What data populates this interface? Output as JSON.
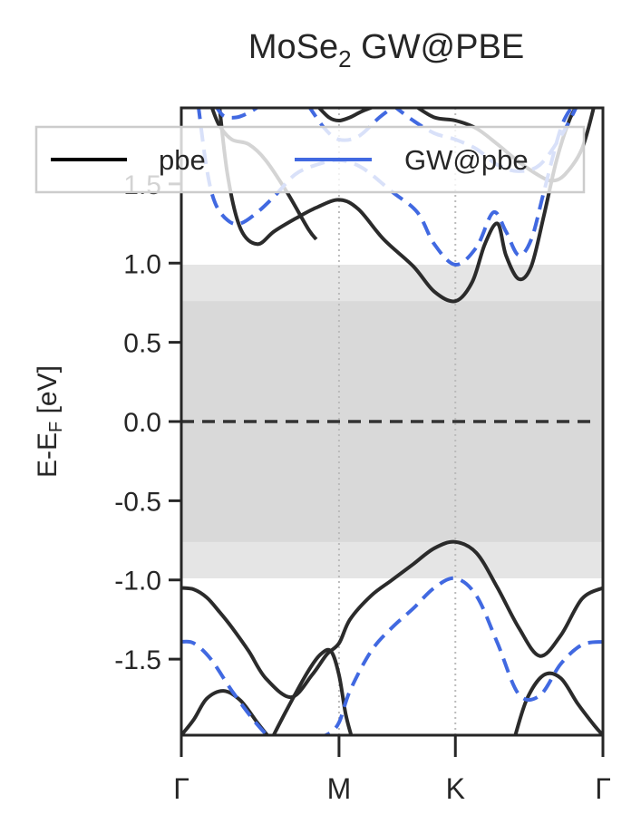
{
  "chart_data": {
    "type": "line",
    "title_main": "MoSe",
    "title_sub": "2",
    "title_rest": " GW@PBE",
    "ylabel_main": "E-E",
    "ylabel_sub": "F",
    "ylabel_rest": " [eV]",
    "ylim": [
      -1.98,
      1.98
    ],
    "yticks": [
      {
        "value": -1.5,
        "label": "-1.5"
      },
      {
        "value": -1.0,
        "label": "-1.0"
      },
      {
        "value": -0.5,
        "label": "-0.5"
      },
      {
        "value": 0.0,
        "label": "0.0"
      },
      {
        "value": 0.5,
        "label": "0.5"
      },
      {
        "value": 1.0,
        "label": "1.0"
      },
      {
        "value": 1.5,
        "label": "1.5"
      }
    ],
    "kpath_length": 1.0,
    "kticks": [
      {
        "k": 0.0,
        "label": "Γ"
      },
      {
        "k": 0.374,
        "label": "M"
      },
      {
        "k": 0.65,
        "label": "K"
      },
      {
        "k": 1.0,
        "label": "Γ"
      }
    ],
    "fermi_level": 0.0,
    "gaps": [
      {
        "series": "pbe",
        "vbm": -0.76,
        "cbm": 0.76,
        "color": "#d9d9d9"
      },
      {
        "series": "GW@pbe",
        "vbm": -0.99,
        "cbm": 0.99,
        "color": "#e5e5e5"
      }
    ],
    "legend": {
      "placement": "top",
      "entries": [
        {
          "label": "pbe",
          "color": "#000000"
        },
        {
          "label": "GW@pbe",
          "color": "#4169e1"
        }
      ]
    },
    "series": [
      {
        "name": "pbe",
        "color": "#2b2b2b",
        "style": "solid",
        "bands": [
          {
            "k": [
              0,
              0.03,
              0.06,
              0.09,
              0.12,
              0.16,
              0.2,
              0.26,
              0.31,
              0.345,
              0.374,
              0.4,
              0.45,
              0.5,
              0.55,
              0.6,
              0.65,
              0.7,
              0.75,
              0.8,
              0.85,
              0.9,
              0.95,
              1.0
            ],
            "e": [
              -1.05,
              -1.06,
              -1.11,
              -1.2,
              -1.3,
              -1.45,
              -1.62,
              -1.74,
              -1.6,
              -1.47,
              -1.4,
              -1.25,
              -1.1,
              -1.0,
              -0.9,
              -0.8,
              -0.76,
              -0.83,
              -1.05,
              -1.3,
              -1.48,
              -1.35,
              -1.12,
              -1.05
            ]
          },
          {
            "k": [
              0,
              0.03,
              0.06,
              0.1,
              0.14,
              0.18,
              0.21
            ],
            "e": [
              -1.98,
              -1.88,
              -1.75,
              -1.7,
              -1.76,
              -1.9,
              -2.0
            ]
          },
          {
            "k": [
              0.215,
              0.25,
              0.3,
              0.33,
              0.355,
              0.374,
              0.39,
              0.405
            ],
            "e": [
              -2.0,
              -1.82,
              -1.58,
              -1.47,
              -1.45,
              -1.6,
              -1.85,
              -2.0
            ]
          },
          {
            "k": [
              0.79,
              0.82,
              0.86,
              0.9,
              0.94,
              0.98,
              1.0
            ],
            "e": [
              -2.0,
              -1.75,
              -1.6,
              -1.62,
              -1.78,
              -1.92,
              -1.98
            ]
          },
          {
            "k": [
              0.09,
              0.11,
              0.14,
              0.18,
              0.22,
              0.27,
              0.32,
              0.374,
              0.42,
              0.48,
              0.55,
              0.6,
              0.65,
              0.69,
              0.72,
              0.75,
              0.77,
              0.8,
              0.83,
              0.86,
              0.89,
              0.92,
              0.94
            ],
            "e": [
              2.0,
              1.55,
              1.22,
              1.12,
              1.2,
              1.28,
              1.35,
              1.4,
              1.34,
              1.15,
              0.98,
              0.82,
              0.76,
              0.88,
              1.12,
              1.25,
              1.05,
              0.9,
              0.98,
              1.3,
              1.65,
              1.9,
              2.0
            ]
          },
          {
            "k": [
              0.07,
              0.09,
              0.12,
              0.16,
              0.2,
              0.25,
              0.3,
              0.32
            ],
            "e": [
              2.0,
              1.87,
              1.78,
              1.75,
              1.65,
              1.45,
              1.22,
              1.15
            ]
          },
          {
            "k": [
              0.55,
              0.6,
              0.65,
              0.7,
              0.75,
              0.8,
              0.85,
              0.88,
              0.91,
              0.95,
              0.98
            ],
            "e": [
              2.0,
              1.92,
              1.9,
              1.85,
              1.75,
              1.64,
              1.55,
              1.52,
              1.56,
              1.72,
              2.0
            ]
          },
          {
            "k": [
              0.32,
              0.35,
              0.374,
              0.4,
              0.43,
              0.47
            ],
            "e": [
              2.0,
              1.92,
              1.9,
              1.92,
              1.96,
              2.0
            ]
          }
        ]
      },
      {
        "name": "GW@pbe",
        "color": "#4169e1",
        "style": "dashed",
        "bands": [
          {
            "k": [
              0,
              0.03,
              0.07,
              0.12,
              0.17,
              0.21
            ],
            "e": [
              -1.39,
              -1.4,
              -1.5,
              -1.7,
              -1.88,
              -2.0
            ]
          },
          {
            "k": [
              0.32,
              0.35,
              0.374,
              0.4,
              0.45,
              0.5,
              0.55,
              0.6,
              0.65,
              0.7,
              0.75,
              0.8,
              0.85,
              0.9,
              0.95,
              1.0
            ],
            "e": [
              -2.0,
              -1.97,
              -1.9,
              -1.7,
              -1.45,
              -1.3,
              -1.18,
              -1.05,
              -0.99,
              -1.1,
              -1.4,
              -1.72,
              -1.73,
              -1.53,
              -1.41,
              -1.39
            ]
          },
          {
            "k": [
              0.04,
              0.06,
              0.08,
              0.11,
              0.14,
              0.18,
              0.22,
              0.27,
              0.32,
              0.374,
              0.43,
              0.5,
              0.56,
              0.6,
              0.65,
              0.7,
              0.74,
              0.77,
              0.8,
              0.83,
              0.86,
              0.9,
              0.93
            ],
            "e": [
              2.0,
              1.6,
              1.38,
              1.27,
              1.25,
              1.32,
              1.42,
              1.56,
              1.62,
              1.65,
              1.6,
              1.45,
              1.32,
              1.12,
              0.99,
              1.1,
              1.32,
              1.2,
              1.05,
              1.15,
              1.45,
              1.85,
              2.0
            ]
          },
          {
            "k": [
              0.3,
              0.34,
              0.374,
              0.42,
              0.47,
              0.51
            ],
            "e": [
              2.0,
              1.85,
              1.78,
              1.8,
              1.92,
              2.0
            ]
          },
          {
            "k": [
              0.5,
              0.55,
              0.6,
              0.65,
              0.7,
              0.75,
              0.8,
              0.85,
              0.9,
              0.94
            ],
            "e": [
              2.0,
              1.9,
              1.82,
              1.78,
              1.72,
              1.62,
              1.58,
              1.62,
              1.8,
              2.0
            ]
          },
          {
            "k": [
              0.08,
              0.1,
              0.13,
              0.16,
              0.19
            ],
            "e": [
              2.0,
              1.93,
              1.92,
              1.95,
              2.0
            ]
          }
        ]
      }
    ]
  }
}
